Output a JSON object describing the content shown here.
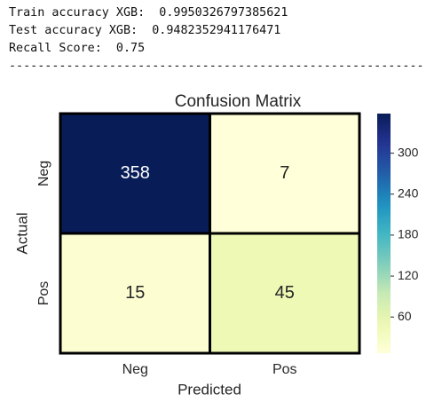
{
  "output_lines": [
    "Train accuracy XGB:  0.9950326797385621",
    "Test accuracy XGB:  0.9482352941176471",
    "Recall Score:  0.75",
    "----------------------------------------------------------"
  ],
  "chart_data": {
    "type": "heatmap",
    "title": "Confusion Matrix",
    "x_label": "Predicted",
    "y_label": "Actual",
    "x_categories": [
      "Neg",
      "Pos"
    ],
    "y_categories": [
      "Neg",
      "Pos"
    ],
    "values": [
      [
        358,
        7
      ],
      [
        15,
        45
      ]
    ],
    "colormap": "YlGnBu",
    "clim": [
      7,
      358
    ],
    "cticks": [
      60,
      120,
      180,
      240,
      300
    ]
  }
}
